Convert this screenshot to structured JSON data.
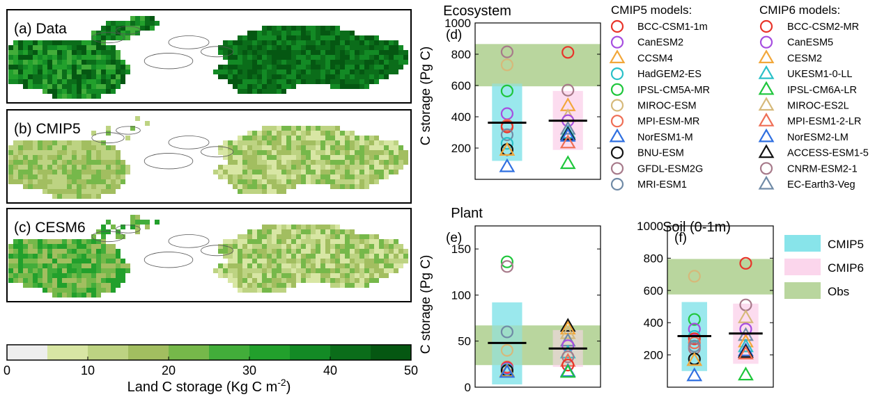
{
  "maps": {
    "panels": [
      {
        "label": "(a) Data"
      },
      {
        "label": "(b) CMIP5"
      },
      {
        "label": "(c) CESM6"
      }
    ],
    "colorbar": {
      "title": "Land C storage (Kg C m",
      "title_sup": "-2",
      "title_end": ")",
      "ticks": [
        "0",
        "10",
        "20",
        "30",
        "40",
        "50"
      ],
      "tick_values": [
        0,
        10,
        20,
        30,
        40,
        50
      ],
      "range": [
        0,
        50
      ],
      "colors": [
        "#eeeeee",
        "#d8e6a4",
        "#bdd382",
        "#a2be60",
        "#76b84a",
        "#42ad3a",
        "#22a02c",
        "#138a25",
        "#0b6d1a",
        "#055712"
      ]
    }
  },
  "legend_models": {
    "cmip5_title": "CMIP5 models:",
    "cmip6_title": "CMIP6 models:",
    "cmip5": [
      {
        "name": "BCC-CSM1-1m",
        "marker": "circle",
        "color": "#e8342a"
      },
      {
        "name": "CanESM2",
        "marker": "circle",
        "color": "#a64ee0"
      },
      {
        "name": "CCSM4",
        "marker": "triangle",
        "color": "#f2a73a"
      },
      {
        "name": "HadGEM2-ES",
        "marker": "circle",
        "color": "#29c0c8"
      },
      {
        "name": "IPSL-CM5A-MR",
        "marker": "circle",
        "color": "#1ec63b"
      },
      {
        "name": "MIROC-ESM",
        "marker": "circle",
        "color": "#d6b97a"
      },
      {
        "name": "MPI-ESM-MR",
        "marker": "circle",
        "color": "#ef6e55"
      },
      {
        "name": "NorESM1-M",
        "marker": "triangle",
        "color": "#2f6fe0"
      },
      {
        "name": "BNU-ESM",
        "marker": "circle",
        "color": "#111111"
      },
      {
        "name": "GFDL-ESM2G",
        "marker": "circle",
        "color": "#a77a8a"
      },
      {
        "name": "MRI-ESM1",
        "marker": "circle",
        "color": "#6f8aa6"
      }
    ],
    "cmip6": [
      {
        "name": "BCC-CSM2-MR",
        "marker": "circle",
        "color": "#e8342a"
      },
      {
        "name": "CanESM5",
        "marker": "circle",
        "color": "#a64ee0"
      },
      {
        "name": "CESM2",
        "marker": "triangle",
        "color": "#f2a73a"
      },
      {
        "name": "UKESM1-0-LL",
        "marker": "triangle",
        "color": "#29c0c8"
      },
      {
        "name": "IPSL-CM6A-LR",
        "marker": "triangle",
        "color": "#1ec63b"
      },
      {
        "name": "MIROC-ES2L",
        "marker": "triangle",
        "color": "#d6b97a"
      },
      {
        "name": "MPI-ESM1-2-LR",
        "marker": "triangle",
        "color": "#ef6e55"
      },
      {
        "name": "NorESM2-LM",
        "marker": "triangle",
        "color": "#2f6fe0"
      },
      {
        "name": "ACCESS-ESM1-5",
        "marker": "triangle",
        "color": "#111111"
      },
      {
        "name": "CNRM-ESM2-1",
        "marker": "circle",
        "color": "#a77a8a"
      },
      {
        "name": "EC-Earth3-Veg",
        "marker": "triangle",
        "color": "#6f8aa6"
      }
    ]
  },
  "box_legend": {
    "items": [
      {
        "label": "CMIP5",
        "color": "#88e4ea"
      },
      {
        "label": "CMIP6",
        "color": "#fbd6ec"
      },
      {
        "label": "Obs",
        "color": "#b9d69e"
      }
    ]
  },
  "colors": {
    "cmip5_box": "#88e4ea",
    "cmip6_box": "#fbd6ec",
    "obs_band": "#b9d69e"
  },
  "chart_data": [
    {
      "id": "d",
      "type": "scatter",
      "title": "Ecosystem",
      "panel_label": "(d)",
      "ylabel": "C storage (Pg C)",
      "ylim": [
        0,
        1000
      ],
      "yticks": [
        200,
        400,
        600,
        800,
        1000
      ],
      "obs_range": [
        595,
        865
      ],
      "groups": [
        {
          "name": "CMIP5",
          "box": [
            118,
            612
          ],
          "mean": 362,
          "points": [
            {
              "y": 815,
              "color": "#a77a8a",
              "marker": "circle"
            },
            {
              "y": 732,
              "color": "#d6b97a",
              "marker": "circle"
            },
            {
              "y": 565,
              "color": "#1ec63b",
              "marker": "circle"
            },
            {
              "y": 420,
              "color": "#a64ee0",
              "marker": "circle"
            },
            {
              "y": 345,
              "color": "#ef6e55",
              "marker": "circle"
            },
            {
              "y": 335,
              "color": "#e8342a",
              "marker": "circle"
            },
            {
              "y": 285,
              "color": "#6f8aa6",
              "marker": "circle"
            },
            {
              "y": 230,
              "color": "#29c0c8",
              "marker": "circle"
            },
            {
              "y": 190,
              "color": "#111111",
              "marker": "circle"
            },
            {
              "y": 185,
              "color": "#f2a73a",
              "marker": "triangle"
            },
            {
              "y": 80,
              "color": "#2f6fe0",
              "marker": "triangle"
            }
          ]
        },
        {
          "name": "CMIP6",
          "box": [
            188,
            565
          ],
          "mean": 375,
          "points": [
            {
              "y": 812,
              "color": "#e8342a",
              "marker": "circle"
            },
            {
              "y": 570,
              "color": "#a77a8a",
              "marker": "circle"
            },
            {
              "y": 470,
              "color": "#f2a73a",
              "marker": "triangle"
            },
            {
              "y": 400,
              "color": "#d6b97a",
              "marker": "triangle"
            },
            {
              "y": 375,
              "color": "#a64ee0",
              "marker": "circle"
            },
            {
              "y": 320,
              "color": "#6f8aa6",
              "marker": "triangle"
            },
            {
              "y": 295,
              "color": "#29c0c8",
              "marker": "triangle"
            },
            {
              "y": 285,
              "color": "#111111",
              "marker": "triangle"
            },
            {
              "y": 275,
              "color": "#2f6fe0",
              "marker": "triangle"
            },
            {
              "y": 232,
              "color": "#ef6e55",
              "marker": "triangle"
            },
            {
              "y": 100,
              "color": "#1ec63b",
              "marker": "triangle"
            }
          ]
        }
      ]
    },
    {
      "id": "e",
      "type": "scatter",
      "title": "Plant",
      "panel_label": "(e)",
      "ylabel": "C storage (Pg C)",
      "ylim": [
        0,
        175
      ],
      "yticks": [
        0,
        50,
        100,
        150
      ],
      "obs_range": [
        24,
        67
      ],
      "groups": [
        {
          "name": "CMIP5",
          "box": [
            3,
            92
          ],
          "mean": 48,
          "points": [
            {
              "y": 136,
              "color": "#1ec63b",
              "marker": "circle"
            },
            {
              "y": 131,
              "color": "#a77a8a",
              "marker": "circle"
            },
            {
              "y": 60,
              "color": "#6f8aa6",
              "marker": "circle"
            },
            {
              "y": 40,
              "color": "#d6b97a",
              "marker": "circle"
            },
            {
              "y": 22,
              "color": "#ef6e55",
              "marker": "circle"
            },
            {
              "y": 21,
              "color": "#e8342a",
              "marker": "circle"
            },
            {
              "y": 20,
              "color": "#a64ee0",
              "marker": "circle"
            },
            {
              "y": 19,
              "color": "#29c0c8",
              "marker": "circle"
            },
            {
              "y": 18,
              "color": "#111111",
              "marker": "circle"
            },
            {
              "y": 17,
              "color": "#f2a73a",
              "marker": "triangle"
            },
            {
              "y": 16,
              "color": "#2f6fe0",
              "marker": "triangle"
            }
          ]
        },
        {
          "name": "CMIP6",
          "box": [
            22,
            62
          ],
          "mean": 42,
          "points": [
            {
              "y": 66,
              "color": "#111111",
              "marker": "triangle"
            },
            {
              "y": 63,
              "color": "#f2a73a",
              "marker": "triangle"
            },
            {
              "y": 58,
              "color": "#d6b97a",
              "marker": "triangle"
            },
            {
              "y": 50,
              "color": "#6f8aa6",
              "marker": "triangle"
            },
            {
              "y": 45,
              "color": "#a64ee0",
              "marker": "circle"
            },
            {
              "y": 37,
              "color": "#29c0c8",
              "marker": "triangle"
            },
            {
              "y": 33,
              "color": "#a77a8a",
              "marker": "circle"
            },
            {
              "y": 28,
              "color": "#ef6e55",
              "marker": "triangle"
            },
            {
              "y": 24,
              "color": "#e8342a",
              "marker": "circle"
            },
            {
              "y": 17,
              "color": "#2f6fe0",
              "marker": "triangle"
            },
            {
              "y": 16,
              "color": "#1ec63b",
              "marker": "triangle"
            }
          ]
        }
      ]
    },
    {
      "id": "f",
      "type": "scatter",
      "title": "Soil (0-1m)",
      "panel_label": "(f)",
      "ylabel": "",
      "ylim": [
        0,
        1000
      ],
      "yticks": [
        200,
        400,
        600,
        800,
        1000
      ],
      "obs_range": [
        575,
        795
      ],
      "groups": [
        {
          "name": "CMIP5",
          "box": [
            100,
            528
          ],
          "mean": 317,
          "points": [
            {
              "y": 688,
              "color": "#d6b97a",
              "marker": "circle"
            },
            {
              "y": 420,
              "color": "#1ec63b",
              "marker": "circle"
            },
            {
              "y": 360,
              "color": "#a64ee0",
              "marker": "circle"
            },
            {
              "y": 315,
              "color": "#29c0c8",
              "marker": "circle"
            },
            {
              "y": 300,
              "color": "#e8342a",
              "marker": "circle"
            },
            {
              "y": 275,
              "color": "#ef6e55",
              "marker": "circle"
            },
            {
              "y": 255,
              "color": "#6f8aa6",
              "marker": "circle"
            },
            {
              "y": 240,
              "color": "#a77a8a",
              "marker": "circle"
            },
            {
              "y": 175,
              "color": "#111111",
              "marker": "circle"
            },
            {
              "y": 165,
              "color": "#f2a73a",
              "marker": "triangle"
            },
            {
              "y": 70,
              "color": "#2f6fe0",
              "marker": "triangle"
            }
          ]
        },
        {
          "name": "CMIP6",
          "box": [
            145,
            518
          ],
          "mean": 333,
          "points": [
            {
              "y": 768,
              "color": "#e8342a",
              "marker": "circle"
            },
            {
              "y": 510,
              "color": "#a77a8a",
              "marker": "circle"
            },
            {
              "y": 430,
              "color": "#d6b97a",
              "marker": "triangle"
            },
            {
              "y": 360,
              "color": "#a64ee0",
              "marker": "circle"
            },
            {
              "y": 320,
              "color": "#6f8aa6",
              "marker": "triangle"
            },
            {
              "y": 280,
              "color": "#f2a73a",
              "marker": "triangle"
            },
            {
              "y": 250,
              "color": "#29c0c8",
              "marker": "triangle"
            },
            {
              "y": 225,
              "color": "#2f6fe0",
              "marker": "triangle"
            },
            {
              "y": 215,
              "color": "#111111",
              "marker": "triangle"
            },
            {
              "y": 205,
              "color": "#ef6e55",
              "marker": "triangle"
            },
            {
              "y": 75,
              "color": "#1ec63b",
              "marker": "triangle"
            }
          ]
        }
      ]
    }
  ]
}
